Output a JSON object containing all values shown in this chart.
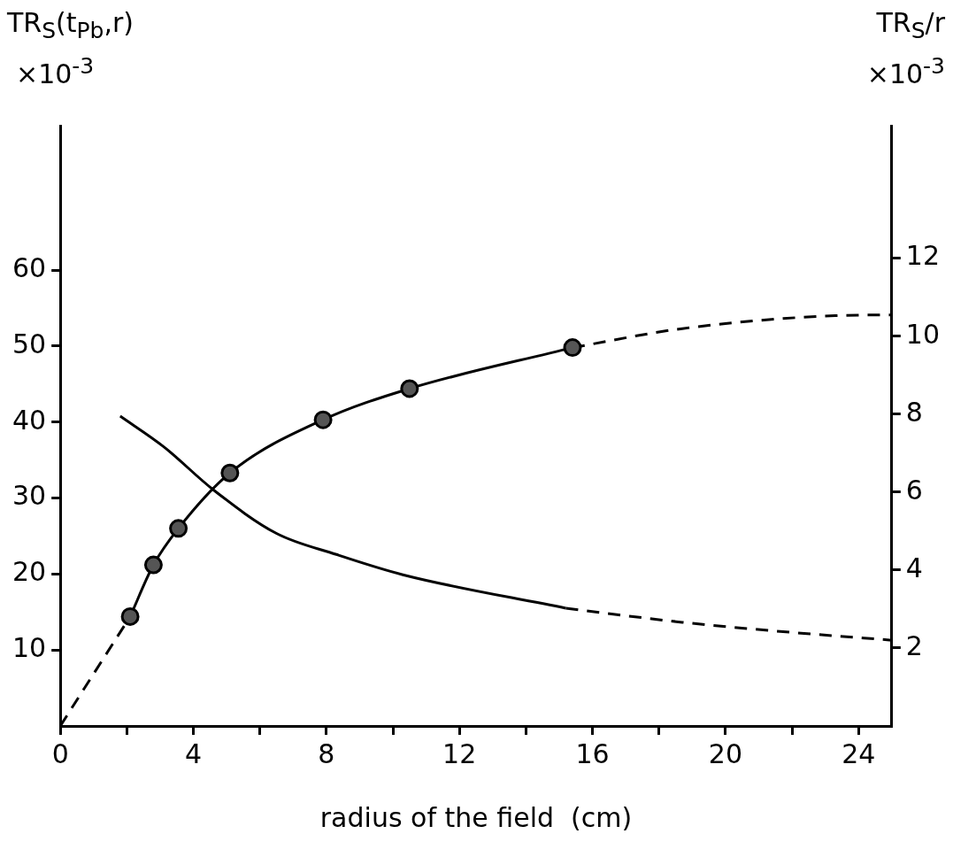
{
  "chart_data": {
    "type": "line",
    "xlabel": "radius of the field  (cm)",
    "ylabel": "TR$_{S}$(t$_{Pb}$,r)",
    "y2label": "TR$_{S}$/r",
    "annotations": [
      "×10$^{-3}$",
      "×10$^{-3}$"
    ],
    "series": [
      {
        "color": "#000000",
        "marker": "circle",
        "line_style": "solid",
        "x": [
          2.1,
          2.8,
          3.55,
          5.1,
          7.9,
          10.5,
          15.4
        ],
        "values": [
          14.4,
          21.2,
          26.0,
          33.3,
          40.3,
          44.4,
          49.8
        ]
      },
      {
        "color": "#000000",
        "marker": "none",
        "line_style": "dashed",
        "x": [
          0,
          2.1,
          8,
          15.4,
          18.7,
          23.3,
          25
        ],
        "values": [
          0,
          14.4,
          null,
          49.8,
          52.3,
          54.0,
          54.1
        ]
      },
      {
        "color": "#000000",
        "marker": "none",
        "line_style": "solid",
        "axis": "y2",
        "x": [
          1.8,
          3.1,
          4.6,
          6.5,
          8.3,
          10.3,
          15.2
        ],
        "values": [
          7.95,
          7.17,
          6.06,
          4.94,
          4.4,
          3.88,
          3.02
        ]
      },
      {
        "color": "#000000",
        "marker": "none",
        "line_style": "dashed",
        "axis": "y2",
        "x": [
          15.2,
          18.7,
          22,
          25
        ],
        "values": [
          3.02,
          2.66,
          2.4,
          2.2
        ]
      }
    ],
    "xlim": [
      0,
      25
    ],
    "xticks": [
      0,
      {
        "value": 2,
        "label": null
      },
      4,
      {
        "value": 6,
        "label": null
      },
      8,
      {
        "value": 10,
        "label": null
      },
      12,
      {
        "value": 14,
        "label": null
      },
      16,
      {
        "value": 18,
        "label": null
      },
      20,
      {
        "value": 22,
        "label": null
      },
      24
    ],
    "ylim": [
      0,
      79
    ],
    "yticks": [
      10,
      20,
      30,
      40,
      50,
      60
    ],
    "y2lim": [
      0,
      15.4
    ],
    "y2ticks": [
      2,
      4,
      6,
      8,
      10,
      12
    ],
    "grid": false,
    "legend": false
  }
}
